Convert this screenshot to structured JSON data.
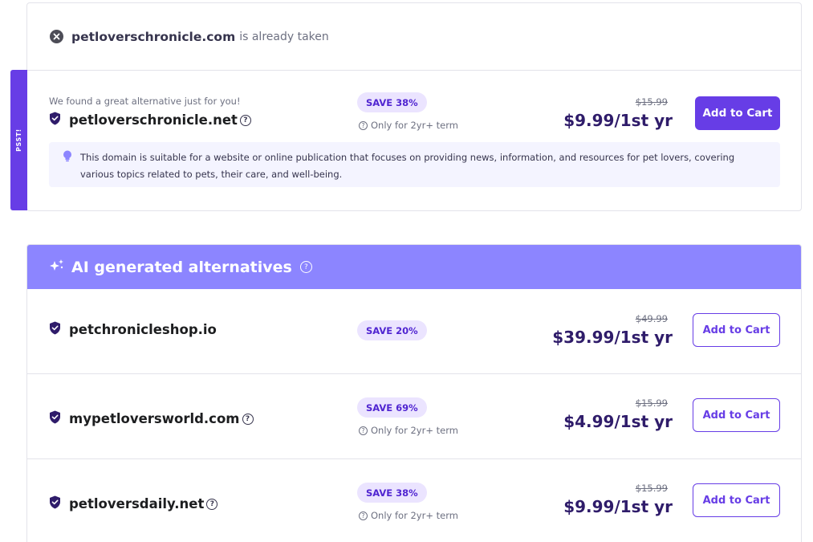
{
  "taken": {
    "domain": "petloverschronicle.com",
    "suffix": "is already taken"
  },
  "psst_label": "PSST!",
  "recommended": {
    "note": "We found a great alternative just for you!",
    "domain": "petloverschronicle.net",
    "save": "SAVE 38%",
    "term": "Only for 2yr+ term",
    "old_price": "$15.99",
    "price": "$9.99/1st yr",
    "button": "Add to Cart",
    "description": "This domain is suitable for a website or online publication that focuses on providing news, information, and resources for pet lovers, covering various topics related to pets, their care, and well-being."
  },
  "ai": {
    "title": "AI generated alternatives",
    "items": [
      {
        "domain": "petchronicleshop.io",
        "save": "SAVE 20%",
        "term": "",
        "old_price": "$49.99",
        "price": "$39.99/1st yr",
        "button": "Add to Cart"
      },
      {
        "domain": "mypetloversworld.com",
        "save": "SAVE 69%",
        "term": "Only for 2yr+ term",
        "old_price": "$15.99",
        "price": "$4.99/1st yr",
        "button": "Add to Cart"
      },
      {
        "domain": "petloversdaily.net",
        "save": "SAVE 38%",
        "term": "Only for 2yr+ term",
        "old_price": "$15.99",
        "price": "$9.99/1st yr",
        "button": "Add to Cart"
      }
    ]
  },
  "colors": {
    "accent": "#673de6",
    "ai_header": "#8c85ff",
    "badge_bg": "#ebe4ff",
    "desc_bg": "#f4f4ff"
  },
  "icons": [
    "close-circle-icon",
    "shield-icon",
    "help-icon",
    "lightbulb-icon",
    "sparkle-icon"
  ]
}
